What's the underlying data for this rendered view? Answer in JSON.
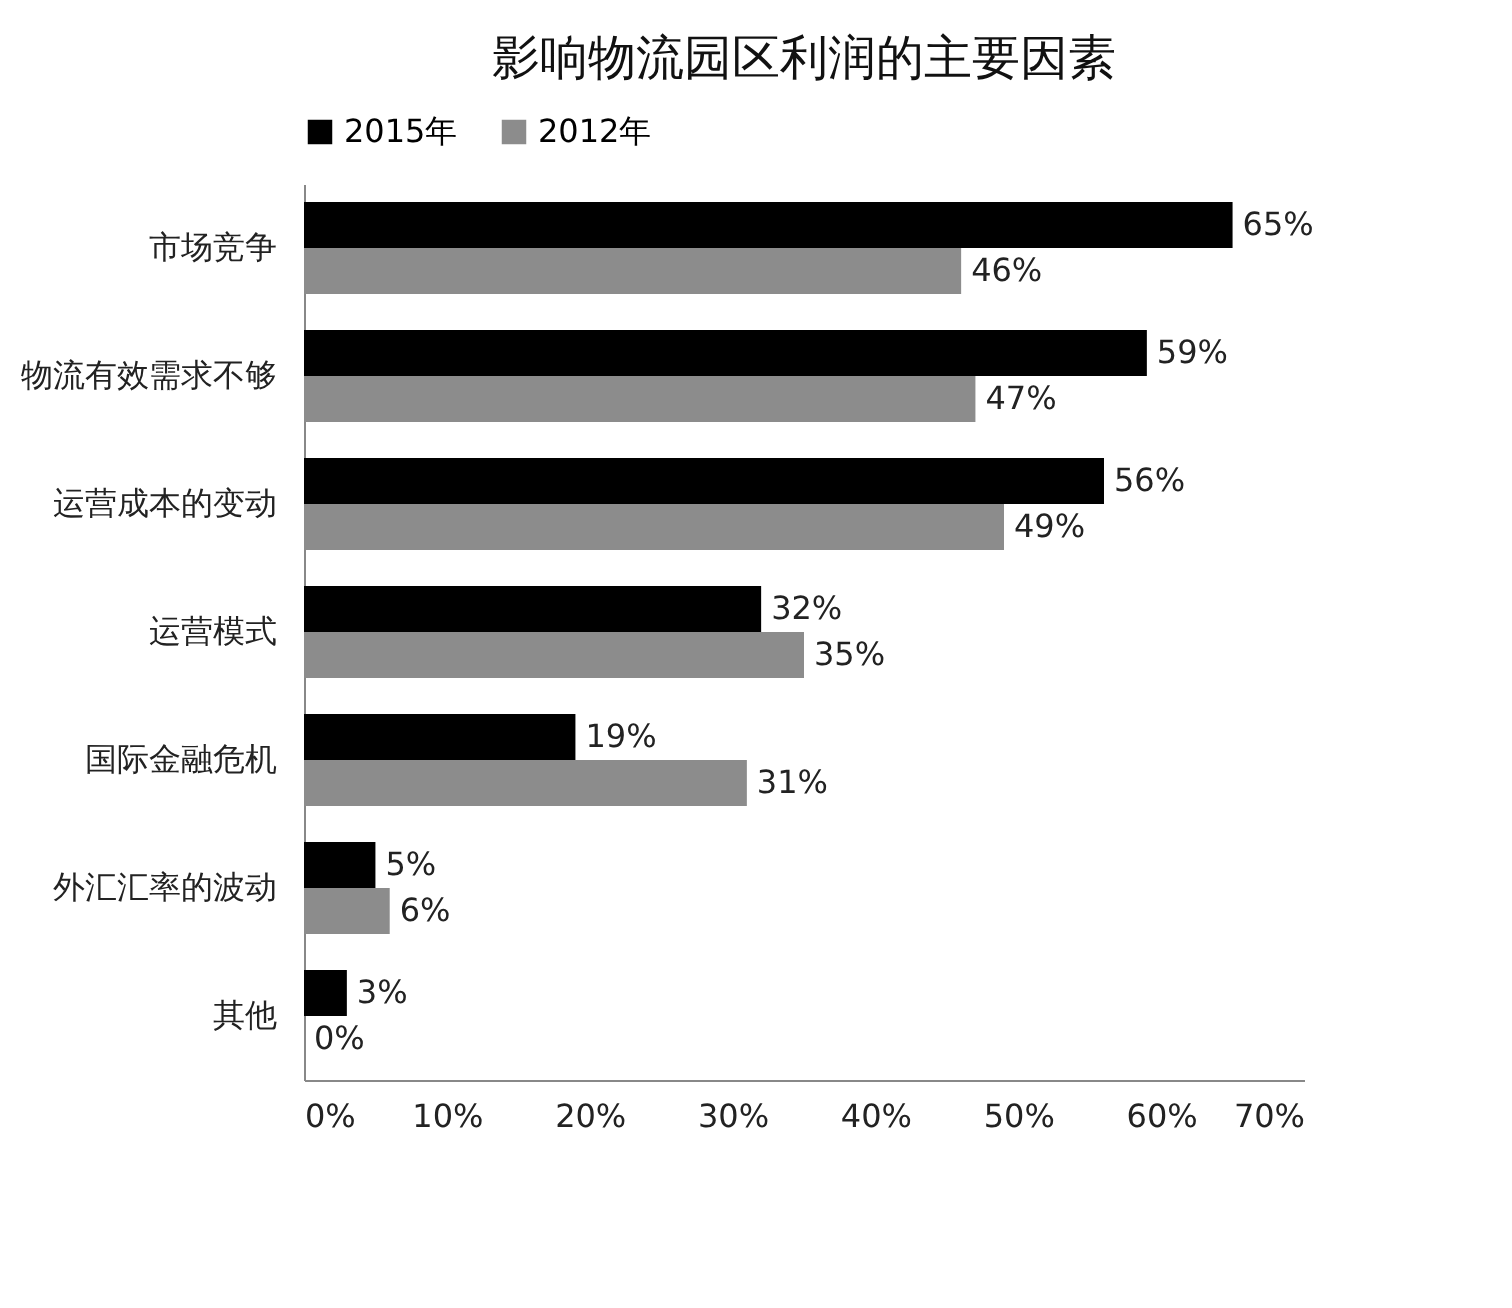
{
  "chart_data": {
    "type": "bar",
    "orientation": "horizontal",
    "title": "影响物流园区利润的主要因素",
    "categories": [
      "市场竞争",
      "物流有效需求不够",
      "运营成本的变动",
      "运营模式",
      "国际金融危机",
      "外汇汇率的波动",
      "其他"
    ],
    "series": [
      {
        "name": "2015年",
        "color": "#000000",
        "values": [
          65,
          59,
          56,
          32,
          19,
          5,
          3
        ],
        "value_labels": [
          "65%",
          "59%",
          "56%",
          "32%",
          "19%",
          "5%",
          "3%"
        ]
      },
      {
        "name": "2012年",
        "color": "#8c8c8c",
        "values": [
          46,
          47,
          49,
          35,
          31,
          6,
          0
        ],
        "value_labels": [
          "46%",
          "47%",
          "49%",
          "35%",
          "31%",
          "6%",
          "0%"
        ]
      }
    ],
    "xlim": [
      0,
      70
    ],
    "xticks": [
      {
        "value": 0,
        "label": "0%"
      },
      {
        "value": 10,
        "label": "10%"
      },
      {
        "value": 20,
        "label": "20%"
      },
      {
        "value": 30,
        "label": "30%"
      },
      {
        "value": 40,
        "label": "40%"
      },
      {
        "value": 50,
        "label": "50%"
      },
      {
        "value": 60,
        "label": "60%"
      },
      {
        "value": 70,
        "label": "70%"
      }
    ],
    "legend": "top",
    "grid": false
  }
}
